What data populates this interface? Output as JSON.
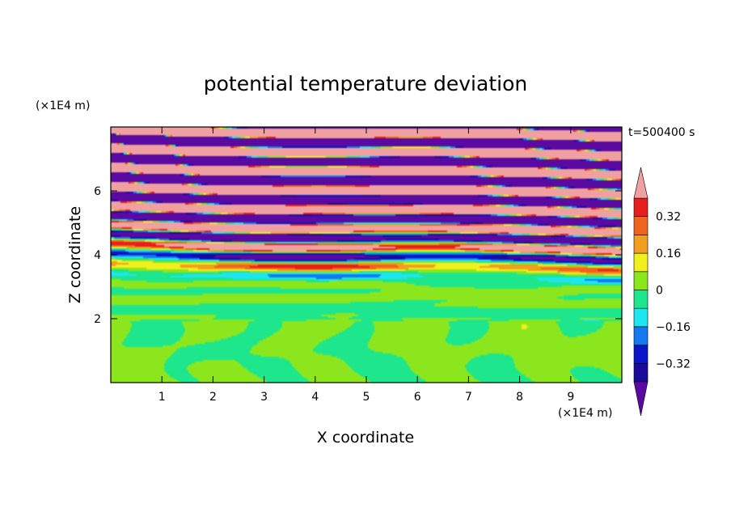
{
  "chart_data": {
    "type": "heatmap",
    "title": "potential temperature deviation",
    "xlabel": "X coordinate",
    "ylabel": "Z coordinate",
    "x_unit": "(×1E4 m)",
    "z_unit": "(×1E4 m)",
    "time_label": "t=500400 s",
    "xlim": [
      0,
      10
    ],
    "ylim": [
      0,
      8
    ],
    "x_ticks": [
      "1",
      "2",
      "3",
      "4",
      "5",
      "6",
      "7",
      "8",
      "9"
    ],
    "y_ticks": [
      "2",
      "4",
      "6"
    ],
    "colorbar": {
      "levels": [
        -0.4,
        -0.32,
        -0.24,
        -0.16,
        -0.08,
        0,
        0.08,
        0.16,
        0.24,
        0.32,
        0.4
      ],
      "tick_labels": [
        "0.32",
        "0.16",
        "0",
        "−0.16",
        "−0.32"
      ],
      "tick_values": [
        0.32,
        0.16,
        0,
        -0.16,
        -0.32
      ],
      "colors": [
        "#5a0aa0",
        "#1a0a9a",
        "#0c14c8",
        "#1478f0",
        "#1ee6f0",
        "#1ee68c",
        "#8ce61e",
        "#f0f01e",
        "#f0a01e",
        "#f0641e",
        "#e61e1e",
        "#f0a0a0"
      ],
      "extend": "both"
    },
    "grid": false,
    "description_of_field": "layered deviations: small-amplitude cells below z=2, strong horizontal bands between z=5 and z=8"
  }
}
